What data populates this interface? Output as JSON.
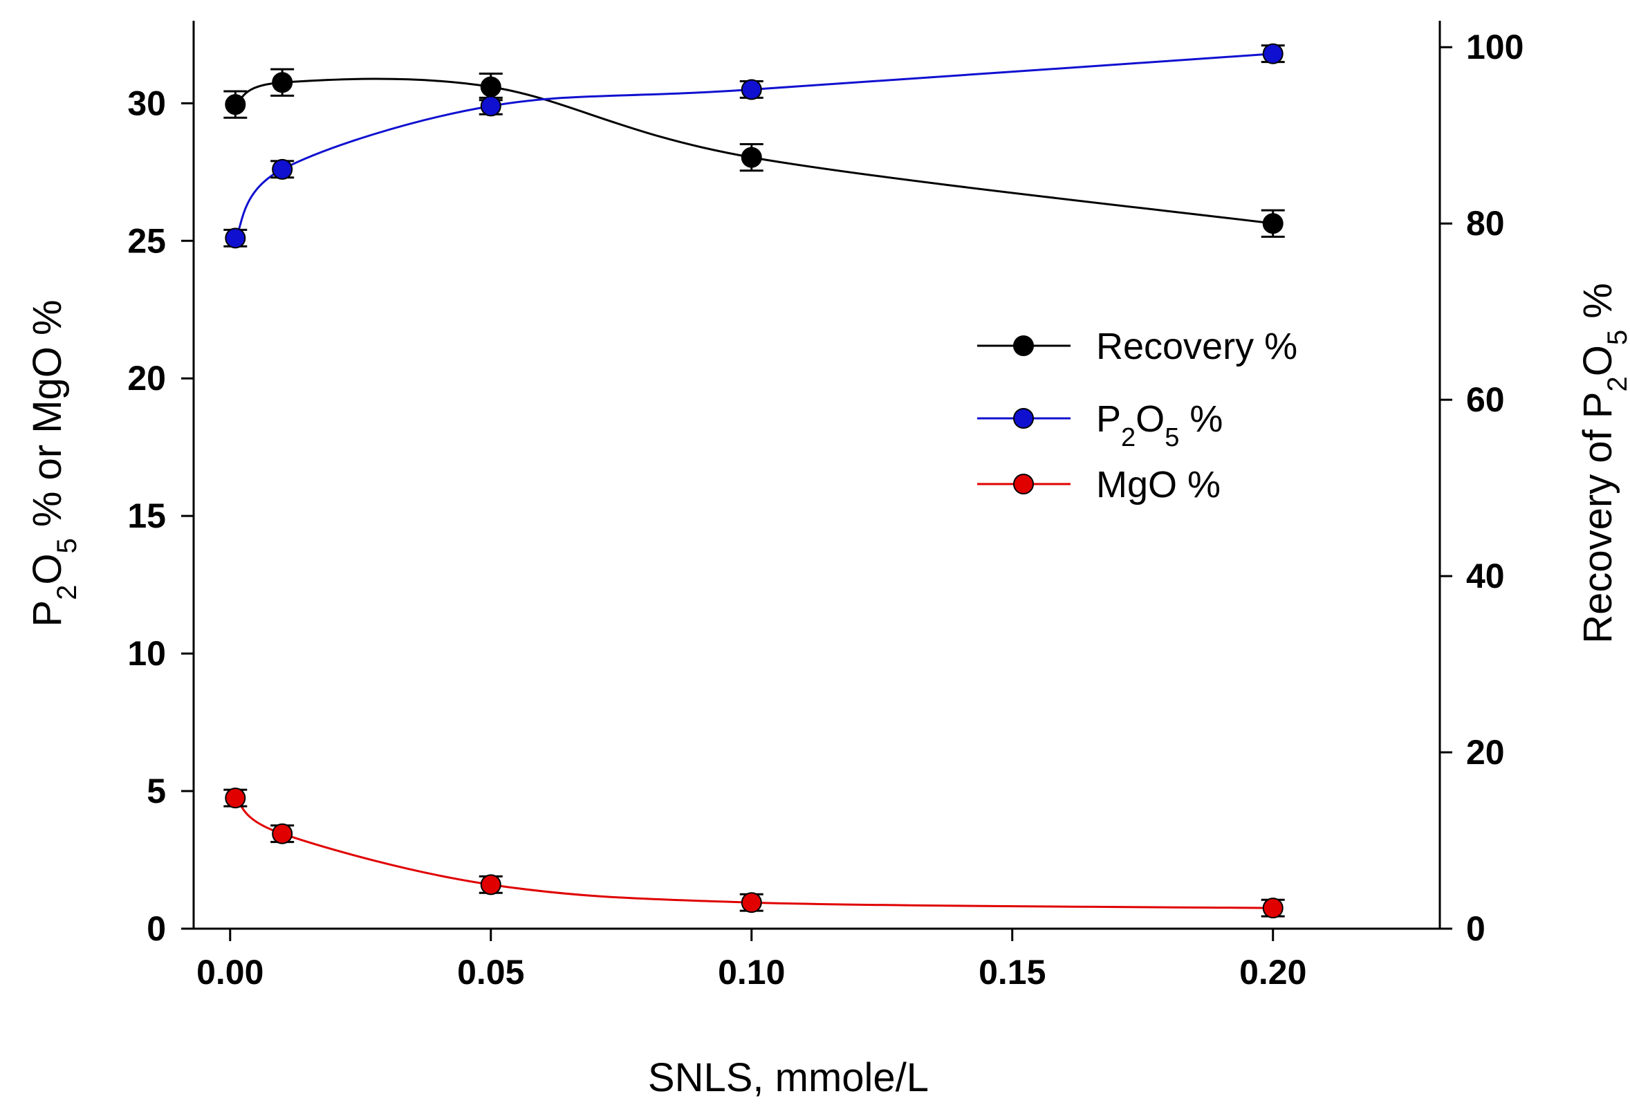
{
  "chart_data": {
    "type": "line",
    "title": "",
    "xlabel": "SNLS, mmole/L",
    "ylabel": {
      "pre": "P",
      "sub1": "2",
      "mid": "O",
      "sub2": "5",
      "post": " % or MgO %"
    },
    "ylabel_right": {
      "pre": "Recovery of P",
      "sub1": "2",
      "mid": "O",
      "sub2": "5",
      "post": " %"
    },
    "xlim": [
      -0.007,
      0.232
    ],
    "ylim": [
      0,
      33
    ],
    "ylim_right": [
      0,
      103
    ],
    "x_ticks": [
      0.0,
      0.05,
      0.1,
      0.15,
      0.2
    ],
    "x_tick_labels": [
      "0.00",
      "0.05",
      "0.10",
      "0.15",
      "0.20"
    ],
    "y_ticks": [
      0,
      5,
      10,
      15,
      20,
      25,
      30
    ],
    "y_tick_labels": [
      "0",
      "5",
      "10",
      "15",
      "20",
      "25",
      "30"
    ],
    "y_right_ticks": [
      0,
      20,
      40,
      60,
      80,
      100
    ],
    "y_right_tick_labels": [
      "0",
      "20",
      "40",
      "60",
      "80",
      "100"
    ],
    "x": [
      0.001,
      0.01,
      0.05,
      0.1,
      0.2
    ],
    "series": [
      {
        "name": "Recovery %",
        "legend": {
          "pre": "Recovery %"
        },
        "axis": "right",
        "color": "#000000",
        "values": [
          93.5,
          96.0,
          95.5,
          87.5,
          80.0
        ],
        "errors": [
          1.5,
          1.5,
          1.5,
          1.5,
          1.5
        ]
      },
      {
        "name": "P2O5 %",
        "legend": {
          "pre": "P",
          "sub1": "2",
          "mid": "O",
          "sub2": "5",
          "post": " %"
        },
        "axis": "left",
        "color": "#1010d0",
        "values": [
          25.1,
          27.6,
          29.9,
          30.5,
          31.8
        ],
        "errors": [
          0.3,
          0.3,
          0.3,
          0.3,
          0.3
        ]
      },
      {
        "name": "MgO %",
        "legend": {
          "pre": "MgO %"
        },
        "axis": "left",
        "color": "#e00000",
        "values": [
          4.75,
          3.45,
          1.6,
          0.95,
          0.75
        ],
        "errors": [
          0.3,
          0.3,
          0.3,
          0.3,
          0.3
        ]
      }
    ],
    "legend_position": "center-right",
    "grid": false
  }
}
